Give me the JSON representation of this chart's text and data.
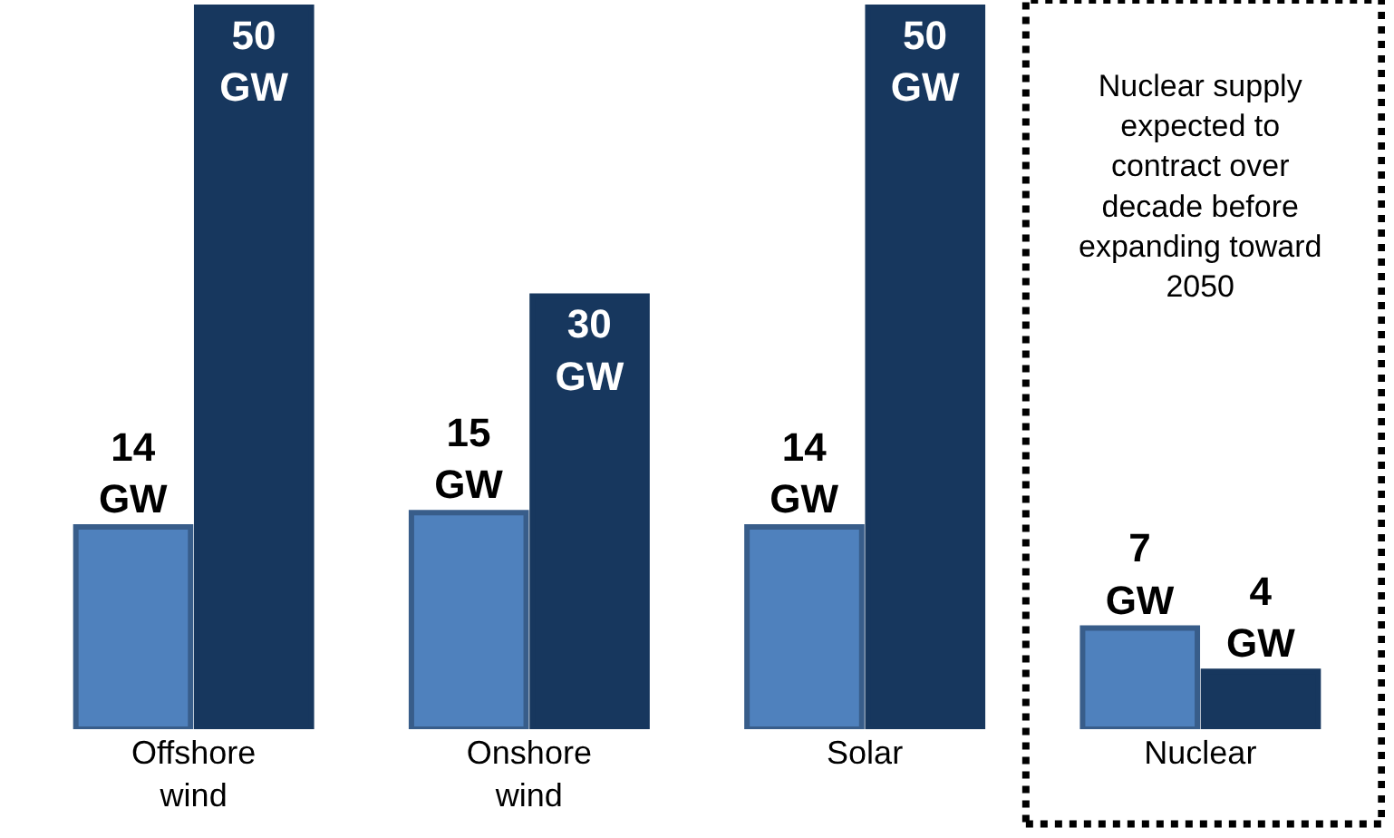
{
  "chart_data": {
    "type": "bar",
    "categories": [
      "Offshore wind",
      "Onshore wind",
      "Solar",
      "Nuclear"
    ],
    "series": [
      {
        "color": "#4f81bd",
        "values": [
          14,
          15,
          14,
          7
        ],
        "value_labels": [
          "14 GW",
          "15 GW",
          "14 GW",
          "7 GW"
        ]
      },
      {
        "color": "#17375e",
        "values": [
          50,
          30,
          50,
          4
        ],
        "value_labels": [
          "50 GW",
          "30 GW",
          "50 GW",
          "4 GW"
        ]
      }
    ],
    "annotations": [
      "Nuclear supply expected to contract over decade before expanding toward 2050"
    ]
  }
}
